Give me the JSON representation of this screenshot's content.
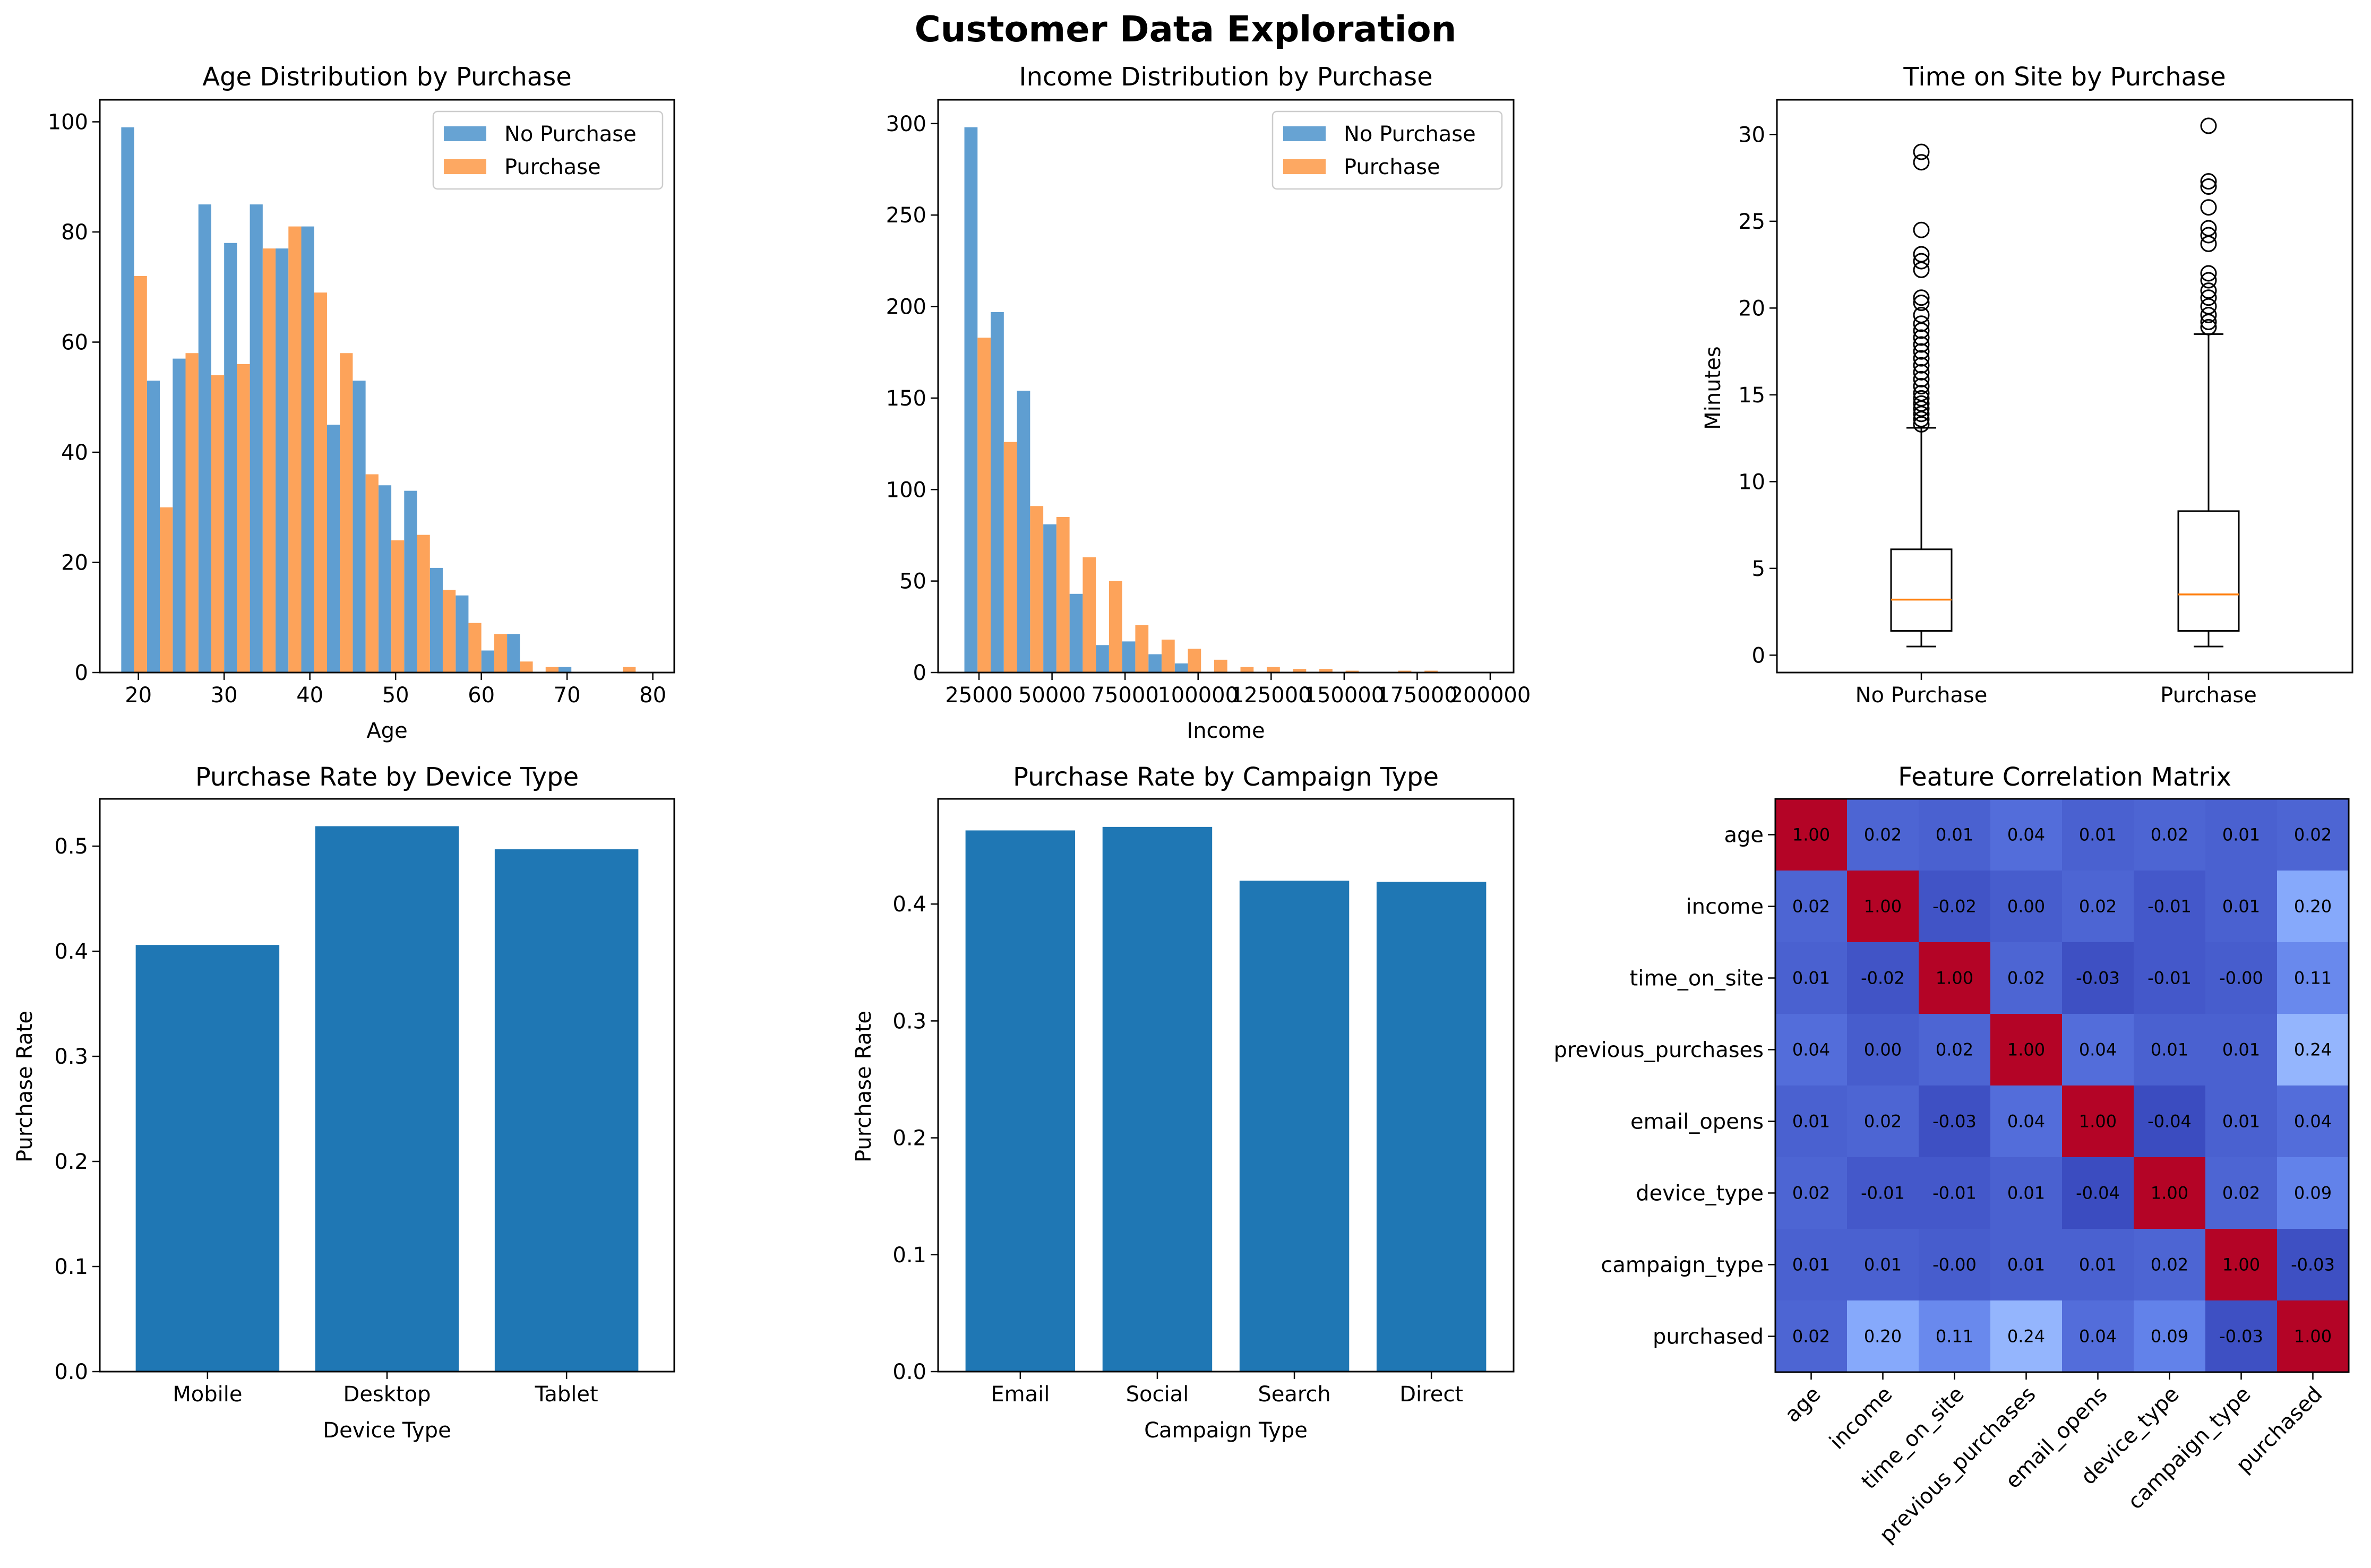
{
  "figure": {
    "title": "Customer Data Exploration"
  },
  "chart_data": [
    {
      "type": "bar",
      "title": "Age Distribution by Purchase",
      "xlabel": "Age",
      "ylabel": "",
      "xlim": [
        15.5,
        82.5
      ],
      "ylim": [
        0,
        104
      ],
      "xticks": [
        20,
        30,
        40,
        50,
        60,
        70,
        80
      ],
      "yticks": [
        0,
        20,
        40,
        60,
        80,
        100
      ],
      "bin_edges": [
        18,
        21,
        24,
        27,
        30,
        33,
        36,
        39,
        42,
        45,
        48,
        51,
        54,
        57,
        60,
        63,
        66,
        69,
        72,
        75,
        78,
        81
      ],
      "legend": "top-right",
      "series": [
        {
          "name": "No Purchase",
          "color": "#5f9ed1",
          "values": [
            99,
            53,
            57,
            85,
            78,
            85,
            77,
            81,
            45,
            53,
            34,
            33,
            19,
            14,
            4,
            7,
            0,
            1,
            0,
            0,
            0
          ]
        },
        {
          "name": "Purchase",
          "color": "#fda35a",
          "values": [
            72,
            30,
            58,
            54,
            56,
            77,
            81,
            69,
            58,
            36,
            24,
            25,
            15,
            9,
            7,
            2,
            1,
            0,
            0,
            1,
            0
          ]
        }
      ]
    },
    {
      "type": "bar",
      "title": "Income Distribution by Purchase",
      "xlabel": "Income",
      "ylabel": "",
      "xlim": [
        11000,
        208000
      ],
      "ylim": [
        0,
        313
      ],
      "xticks": [
        25000,
        50000,
        75000,
        100000,
        125000,
        150000,
        175000,
        200000
      ],
      "yticks": [
        0,
        50,
        100,
        150,
        200,
        250,
        300
      ],
      "bin_edges": [
        20000,
        29000,
        38000,
        47000,
        56000,
        65000,
        74000,
        83000,
        92000,
        101000,
        110000,
        119000,
        128000,
        137000,
        146000,
        155000,
        164000,
        173000,
        182000,
        191000,
        200000
      ],
      "legend": "top-right",
      "series": [
        {
          "name": "No Purchase",
          "color": "#5f9ed1",
          "values": [
            298,
            197,
            154,
            81,
            43,
            15,
            17,
            10,
            5,
            0,
            0,
            0,
            0,
            0,
            0,
            0,
            0,
            0,
            0,
            0
          ]
        },
        {
          "name": "Purchase",
          "color": "#fda35a",
          "values": [
            183,
            126,
            91,
            85,
            63,
            50,
            26,
            18,
            13,
            7,
            3,
            3,
            2,
            2,
            1,
            0,
            1,
            1,
            0,
            0
          ]
        }
      ]
    },
    {
      "type": "box",
      "title": "Time on Site by Purchase",
      "xlabel": "",
      "ylabel": "Minutes",
      "ylim": [
        -1,
        32
      ],
      "yticks": [
        0,
        5,
        10,
        15,
        20,
        25,
        30
      ],
      "categories": [
        "No Purchase",
        "Purchase"
      ],
      "boxes": [
        {
          "whisker_low": 0.5,
          "q1": 1.4,
          "median": 3.2,
          "q3": 6.1,
          "whisker_high": 13.1,
          "outliers": [
            13.3,
            13.6,
            13.9,
            14.2,
            14.5,
            14.8,
            15.1,
            15.5,
            15.9,
            16.3,
            16.7,
            17.1,
            17.5,
            17.9,
            18.3,
            18.7,
            19.1,
            19.6,
            20.3,
            20.6,
            22.2,
            22.7,
            23.1,
            24.5,
            28.4,
            29.0
          ]
        },
        {
          "whisker_low": 0.5,
          "q1": 1.4,
          "median": 3.5,
          "q3": 8.3,
          "whisker_high": 18.5,
          "outliers": [
            18.9,
            19.2,
            19.6,
            20.1,
            20.6,
            21.0,
            21.6,
            22.0,
            23.7,
            24.2,
            24.6,
            25.8,
            27.0,
            27.3,
            30.5
          ]
        }
      ]
    },
    {
      "type": "bar",
      "title": "Purchase Rate by Device Type",
      "xlabel": "Device Type",
      "ylabel": "Purchase Rate",
      "ylim": [
        0,
        0.545
      ],
      "yticks": [
        0.0,
        0.1,
        0.2,
        0.3,
        0.4,
        0.5
      ],
      "color": "#1f77b4",
      "categories": [
        "Mobile",
        "Desktop",
        "Tablet"
      ],
      "values": [
        0.406,
        0.519,
        0.497
      ]
    },
    {
      "type": "bar",
      "title": "Purchase Rate by Campaign Type",
      "xlabel": "Campaign Type",
      "ylabel": "Purchase Rate",
      "ylim": [
        0,
        0.49
      ],
      "yticks": [
        0.0,
        0.1,
        0.2,
        0.3,
        0.4
      ],
      "color": "#1f77b4",
      "categories": [
        "Email",
        "Social",
        "Search",
        "Direct"
      ],
      "values": [
        0.463,
        0.466,
        0.42,
        0.419
      ]
    },
    {
      "type": "heatmap",
      "title": "Feature Correlation Matrix",
      "colormap": "coolwarm",
      "labels": [
        "age",
        "income",
        "time_on_site",
        "previous_purchases",
        "email_opens",
        "device_type",
        "campaign_type",
        "purchased"
      ],
      "matrix": [
        [
          "1.00",
          "0.02",
          "0.01",
          "0.04",
          "0.01",
          "0.02",
          "0.01",
          "0.02"
        ],
        [
          "0.02",
          "1.00",
          "-0.02",
          "0.00",
          "0.02",
          "-0.01",
          "0.01",
          "0.20"
        ],
        [
          "0.01",
          "-0.02",
          "1.00",
          "0.02",
          "-0.03",
          "-0.01",
          "-0.00",
          "0.11"
        ],
        [
          "0.04",
          "0.00",
          "0.02",
          "1.00",
          "0.04",
          "0.01",
          "0.01",
          "0.24"
        ],
        [
          "0.01",
          "0.02",
          "-0.03",
          "0.04",
          "1.00",
          "-0.04",
          "0.01",
          "0.04"
        ],
        [
          "0.02",
          "-0.01",
          "-0.01",
          "0.01",
          "-0.04",
          "1.00",
          "0.02",
          "0.09"
        ],
        [
          "0.01",
          "0.01",
          "-0.00",
          "0.01",
          "0.01",
          "0.02",
          "1.00",
          "-0.03"
        ],
        [
          "0.02",
          "0.20",
          "0.11",
          "0.24",
          "0.04",
          "0.09",
          "-0.03",
          "1.00"
        ]
      ]
    }
  ]
}
